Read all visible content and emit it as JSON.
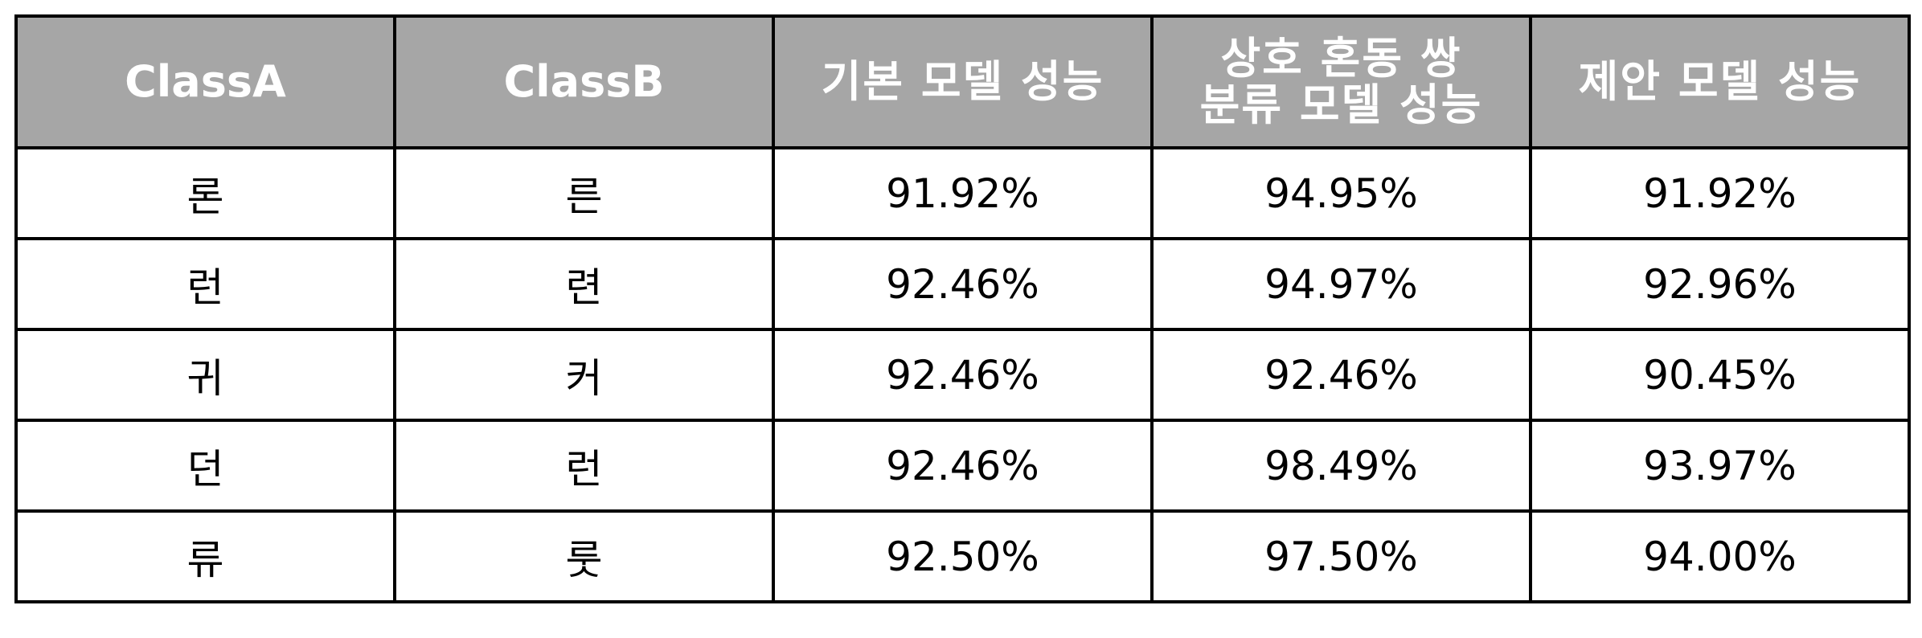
{
  "table": {
    "headers": [
      {
        "lines": [
          "ClassA"
        ]
      },
      {
        "lines": [
          "ClassB"
        ]
      },
      {
        "lines": [
          "기본 모델 성능"
        ]
      },
      {
        "lines": [
          "상호 혼동 쌍",
          "분류 모델 성능"
        ]
      },
      {
        "lines": [
          "제안 모델 성능"
        ]
      }
    ],
    "rows": [
      [
        "론",
        "른",
        "91.92%",
        "94.95%",
        "91.92%"
      ],
      [
        "런",
        "련",
        "92.46%",
        "94.97%",
        "92.96%"
      ],
      [
        "귀",
        "커",
        "92.46%",
        "92.46%",
        "90.45%"
      ],
      [
        "던",
        "런",
        "92.46%",
        "98.49%",
        "93.97%"
      ],
      [
        "류",
        "룻",
        "92.50%",
        "97.50%",
        "94.00%"
      ]
    ]
  },
  "colors": {
    "header_background": "#a6a6a6",
    "header_text": "#ffffff",
    "border": "#000000",
    "body_text": "#000000"
  }
}
